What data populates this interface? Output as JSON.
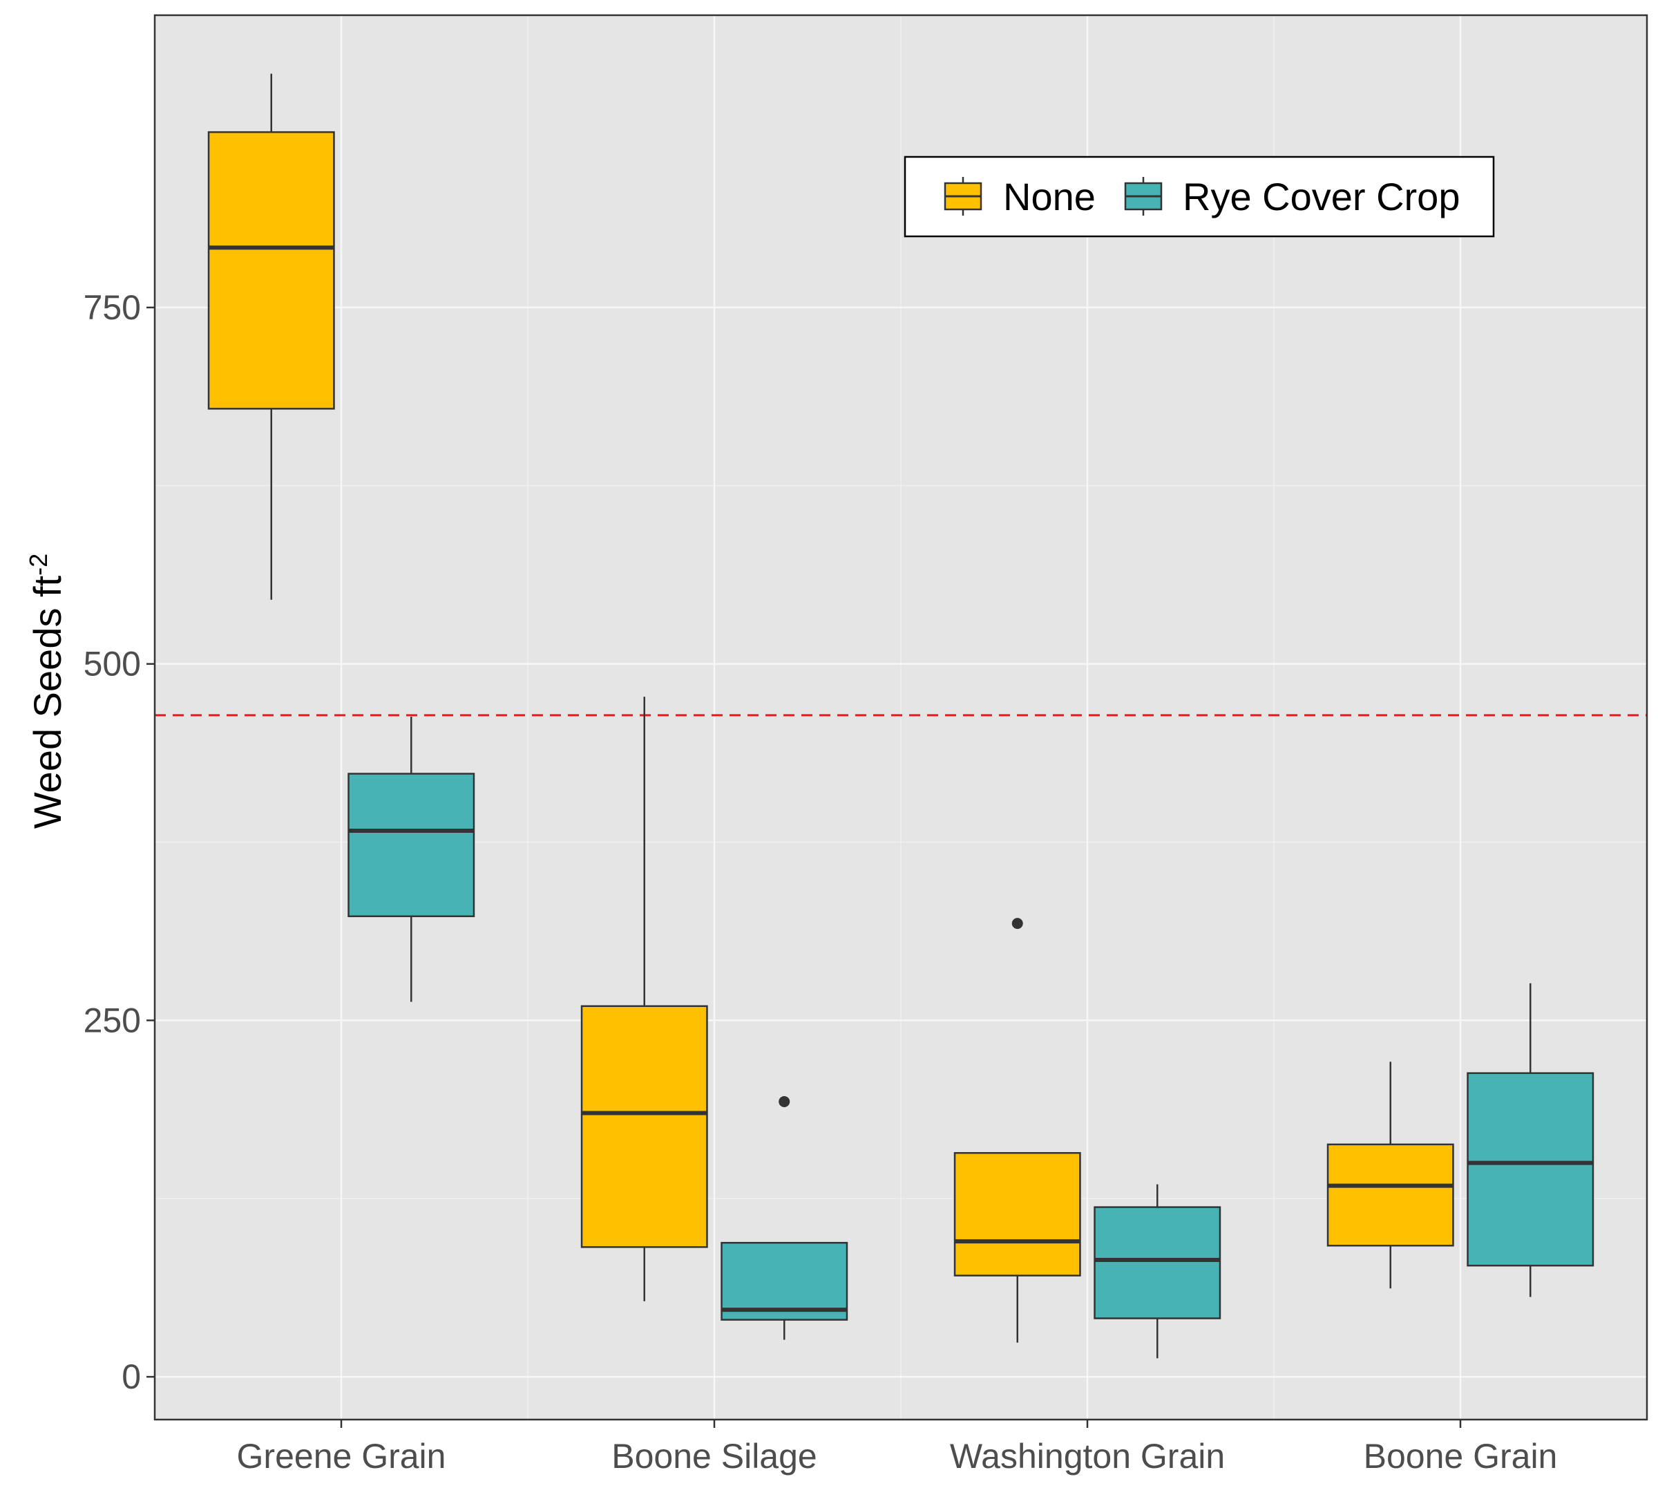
{
  "chart_data": {
    "type": "boxplot",
    "title": "",
    "xlabel": "",
    "ylabel": "Weed Seeds ft",
    "ylabel_superscript": "-2",
    "ylim": [
      -30,
      955
    ],
    "yticks": [
      0,
      250,
      500,
      750
    ],
    "ytick_labels": [
      "0",
      "250",
      "500",
      "750"
    ],
    "grid": true,
    "categories": [
      "Greene Grain",
      "Boone Silage",
      "Washington Grain",
      "Boone Grain"
    ],
    "reference_line": {
      "y": 464,
      "color": "#e41a1c",
      "style": "dashed"
    },
    "legend": {
      "placement": "top-right",
      "orientation": "horizontal"
    },
    "series": [
      {
        "name": "None",
        "color": "#FFC000",
        "boxes": [
          {
            "category": "Greene Grain",
            "min": 545,
            "q1": 679,
            "median": 792,
            "q3": 873,
            "max": 914,
            "outliers": []
          },
          {
            "category": "Boone Silage",
            "min": 53,
            "q1": 91,
            "median": 185,
            "q3": 260,
            "max": 477,
            "outliers": []
          },
          {
            "category": "Washington Grain",
            "min": 24,
            "q1": 71,
            "median": 95,
            "q3": 157,
            "max": 157,
            "outliers": [
              318
            ]
          },
          {
            "category": "Boone Grain",
            "min": 62,
            "q1": 92,
            "median": 134,
            "q3": 163,
            "max": 221,
            "outliers": []
          }
        ]
      },
      {
        "name": "Rye Cover Crop",
        "color": "#48B3B5",
        "boxes": [
          {
            "category": "Greene Grain",
            "min": 263,
            "q1": 323,
            "median": 383,
            "q3": 423,
            "max": 463,
            "outliers": []
          },
          {
            "category": "Boone Silage",
            "min": 26,
            "q1": 40,
            "median": 47,
            "q3": 94,
            "max": 94,
            "outliers": [
              193
            ]
          },
          {
            "category": "Washington Grain",
            "min": 13,
            "q1": 41,
            "median": 82,
            "q3": 119,
            "max": 135,
            "outliers": []
          },
          {
            "category": "Boone Grain",
            "min": 56,
            "q1": 78,
            "median": 150,
            "q3": 213,
            "max": 276,
            "outliers": []
          }
        ]
      }
    ]
  }
}
